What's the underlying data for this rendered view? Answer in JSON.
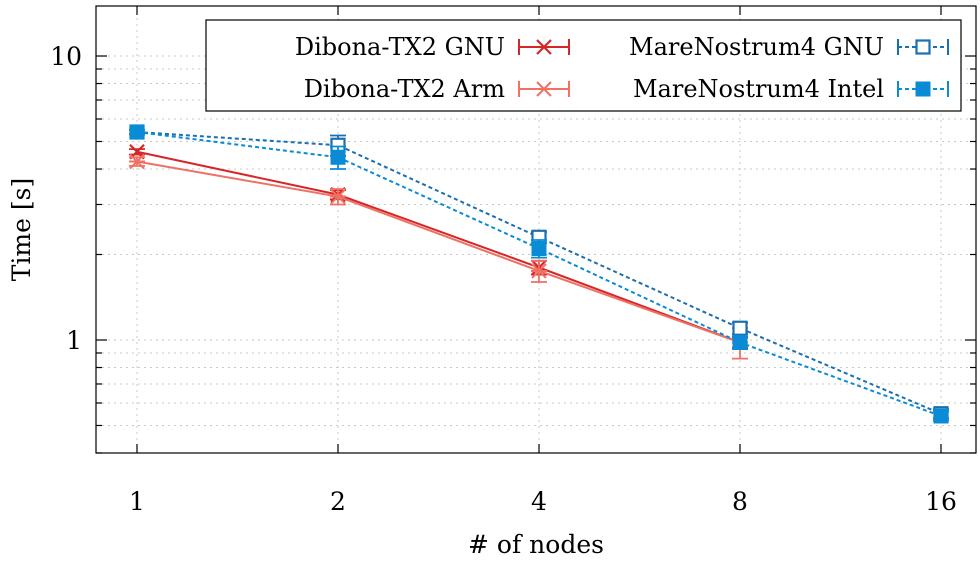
{
  "chart_data": {
    "type": "line",
    "title": "",
    "xlabel": "# of nodes",
    "ylabel": "Time [s]",
    "x_scale": "log2",
    "y_scale": "log10",
    "x": [
      1,
      2,
      4,
      8,
      16
    ],
    "x_tick_labels": [
      "1",
      "2",
      "4",
      "8",
      "16"
    ],
    "y_major_ticks": [
      1,
      10
    ],
    "y_tick_labels": [
      "1",
      "10"
    ],
    "ylim": [
      0.4,
      15
    ],
    "grid": true,
    "legend": {
      "placement": "top-right",
      "columns": 2
    },
    "series": [
      {
        "name": "Dibona-TX2 GNU",
        "color": "#d62728",
        "marker": "x",
        "dashed": false,
        "x": [
          1,
          2,
          4,
          8
        ],
        "y": [
          4.6,
          3.25,
          1.8,
          0.98
        ],
        "err": [
          0.1,
          0.12,
          0.1,
          0.04
        ]
      },
      {
        "name": "Dibona-TX2 Arm",
        "color": "#f07064",
        "marker": "asterisk",
        "dashed": false,
        "x": [
          1,
          2,
          4,
          8
        ],
        "y": [
          4.25,
          3.2,
          1.75,
          0.98
        ],
        "err": [
          0.15,
          0.2,
          0.15,
          0.12
        ]
      },
      {
        "name": "MareNostrum4 GNU",
        "color": "#1a6fb0",
        "marker": "open-square",
        "dashed": true,
        "x": [
          1,
          2,
          4,
          8,
          16
        ],
        "y": [
          5.4,
          4.85,
          2.3,
          1.1,
          0.55
        ],
        "err": [
          0.1,
          0.4,
          0.1,
          0.05,
          0.02
        ]
      },
      {
        "name": "MareNostrum4 Intel",
        "color": "#0a8bd6",
        "marker": "filled-square",
        "dashed": true,
        "x": [
          1,
          2,
          4,
          8,
          16
        ],
        "y": [
          5.4,
          4.4,
          2.1,
          0.98,
          0.54
        ],
        "err": [
          0.1,
          0.4,
          0.15,
          0.05,
          0.02
        ]
      }
    ]
  }
}
